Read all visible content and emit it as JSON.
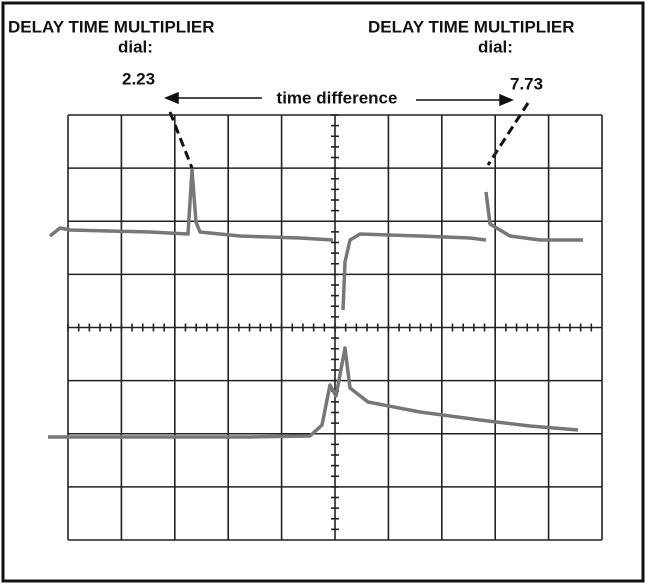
{
  "left_label": {
    "title": "DELAY TIME MULTIPLIER",
    "sub": "dial:"
  },
  "right_label": {
    "title": "DELAY TIME MULTIPLIER",
    "sub": "dial:"
  },
  "readings": {
    "left": "2.23",
    "right": "7.73"
  },
  "span_label": "time difference"
}
